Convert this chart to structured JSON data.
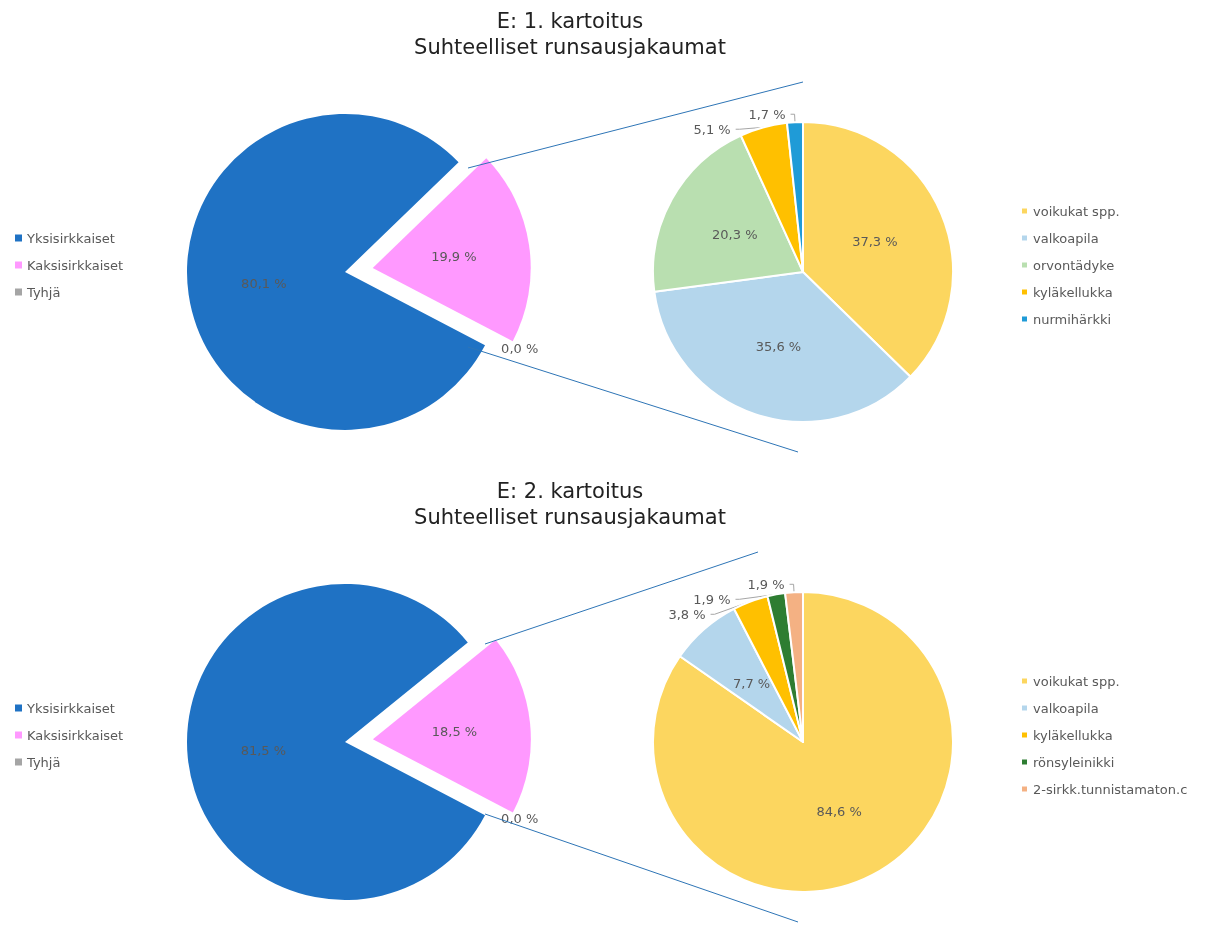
{
  "chart_data": [
    {
      "type": "pie",
      "title": "E: 1. kartoitus",
      "subtitle": "Suhteelliset runsausjakaumat",
      "categories": [
        "Yksisirkkaiset",
        "Kaksisirkkaiset",
        "Tyhjä"
      ],
      "values": [
        80.1,
        19.9,
        0.0
      ],
      "colors": [
        "#1f72c4",
        "#ff99ff",
        "#a5a5a5"
      ],
      "value_labels": [
        "80,1 %",
        "19,9 %",
        "0,0 %"
      ],
      "legend": "left"
    },
    {
      "type": "pie",
      "categories": [
        "voikukat spp.",
        "valkoapila",
        "orvontädyke",
        "kyläkellukka",
        "nurmihärkki"
      ],
      "values": [
        37.3,
        35.6,
        20.3,
        5.1,
        1.7
      ],
      "colors": [
        "#fcd65f",
        "#b4d6ec",
        "#b9dfb0",
        "#ffc000",
        "#1f9bd7"
      ],
      "value_labels": [
        "37,3 %",
        "35,6 %",
        "20,3 %",
        "5,1 %",
        "1,7 %"
      ],
      "legend": "right"
    },
    {
      "type": "pie",
      "title": "E: 2. kartoitus",
      "subtitle": "Suhteelliset runsausjakaumat",
      "categories": [
        "Yksisirkkaiset",
        "Kaksisirkkaiset",
        "Tyhjä"
      ],
      "values": [
        81.5,
        18.5,
        0.0
      ],
      "colors": [
        "#1f72c4",
        "#ff99ff",
        "#a5a5a5"
      ],
      "value_labels": [
        "81,5 %",
        "18,5 %",
        "0,0 %"
      ],
      "legend": "left"
    },
    {
      "type": "pie",
      "categories": [
        "voikukat spp.",
        "valkoapila",
        "kyläkellukka",
        "rönsyleinikki",
        "2-sirkk.tunnistamaton.c"
      ],
      "values": [
        84.6,
        7.7,
        3.8,
        1.9,
        1.9
      ],
      "colors": [
        "#fcd65f",
        "#b4d6ec",
        "#ffc000",
        "#2e7d32",
        "#f4b183"
      ],
      "value_labels": [
        "84,6 %",
        "7,7 %",
        "3,8 %",
        "1,9 %",
        "1,9 %"
      ],
      "legend": "right"
    }
  ]
}
